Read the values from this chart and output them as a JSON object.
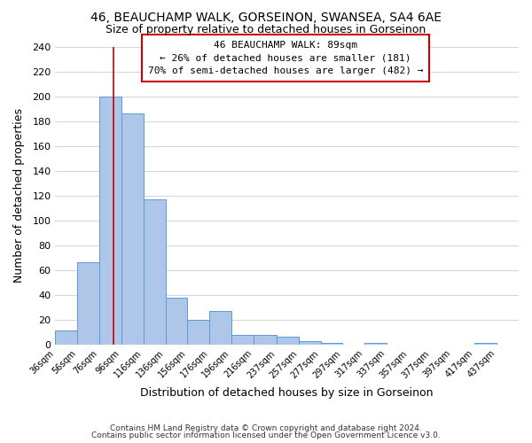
{
  "title_line1": "46, BEAUCHAMP WALK, GORSEINON, SWANSEA, SA4 6AE",
  "title_line2": "Size of property relative to detached houses in Gorseinon",
  "xlabel": "Distribution of detached houses by size in Gorseinon",
  "ylabel": "Number of detached properties",
  "bar_left_edges": [
    36,
    56,
    76,
    96,
    116,
    136,
    156,
    176,
    196,
    216,
    237,
    257,
    277,
    297,
    317,
    337,
    357,
    377,
    397,
    417
  ],
  "bar_widths": [
    20,
    20,
    20,
    20,
    20,
    20,
    20,
    20,
    20,
    21,
    20,
    20,
    20,
    20,
    20,
    20,
    20,
    20,
    20,
    20
  ],
  "bar_heights": [
    11,
    66,
    200,
    186,
    117,
    38,
    20,
    27,
    8,
    8,
    6,
    3,
    1,
    0,
    1,
    0,
    0,
    0,
    0,
    1
  ],
  "bar_color": "#aec6e8",
  "bar_edge_color": "#5b9bd5",
  "tick_labels": [
    "36sqm",
    "56sqm",
    "76sqm",
    "96sqm",
    "116sqm",
    "136sqm",
    "156sqm",
    "176sqm",
    "196sqm",
    "216sqm",
    "237sqm",
    "257sqm",
    "277sqm",
    "297sqm",
    "317sqm",
    "337sqm",
    "357sqm",
    "377sqm",
    "397sqm",
    "417sqm",
    "437sqm"
  ],
  "ylim": [
    0,
    240
  ],
  "yticks": [
    0,
    20,
    40,
    60,
    80,
    100,
    120,
    140,
    160,
    180,
    200,
    220,
    240
  ],
  "xlim_left": 36,
  "xlim_right": 457,
  "property_line_x": 89,
  "annotation_title": "46 BEAUCHAMP WALK: 89sqm",
  "annotation_line1": "← 26% of detached houses are smaller (181)",
  "annotation_line2": "70% of semi-detached houses are larger (482) →",
  "annotation_box_color": "#ffffff",
  "annotation_box_edge_color": "#cc0000",
  "footer_line1": "Contains HM Land Registry data © Crown copyright and database right 2024.",
  "footer_line2": "Contains public sector information licensed under the Open Government Licence v3.0.",
  "background_color": "#ffffff",
  "grid_color": "#d0d8e8"
}
